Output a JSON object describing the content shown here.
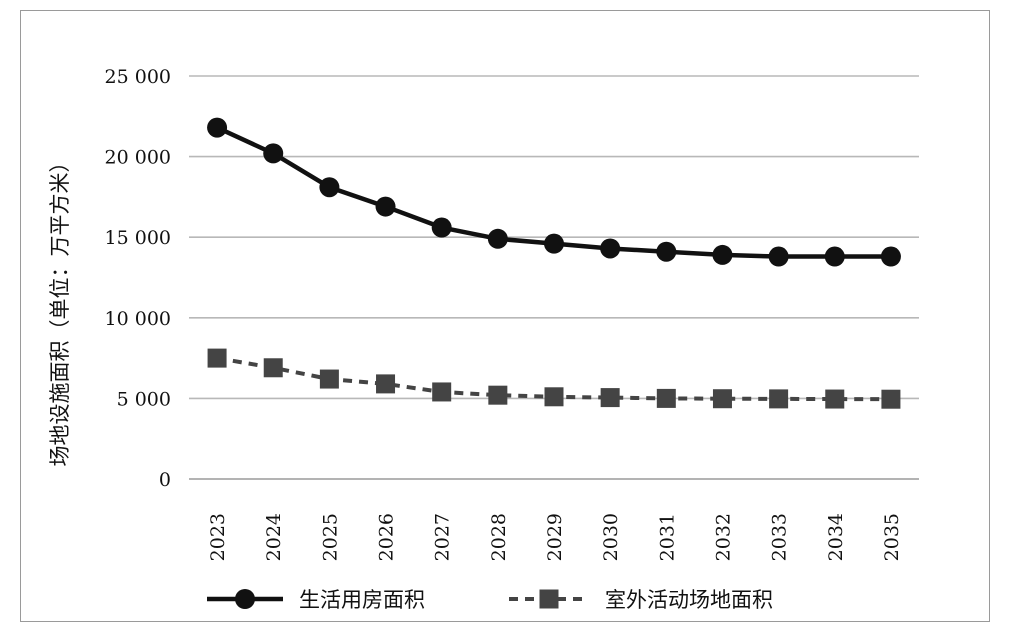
{
  "chart_data": {
    "type": "line",
    "ylabel": "场地设施面积（单位：万平方米）",
    "ylim": [
      0,
      25000
    ],
    "yticks": [
      0,
      5000,
      10000,
      15000,
      20000,
      25000
    ],
    "ytick_labels": [
      "0",
      "5 000",
      "10 000",
      "15 000",
      "20 000",
      "25 000"
    ],
    "categories": [
      "2023",
      "2024",
      "2025",
      "2026",
      "2027",
      "2028",
      "2029",
      "2030",
      "2031",
      "2032",
      "2033",
      "2034",
      "2035"
    ],
    "grid": true,
    "legend_position": "bottom",
    "series": [
      {
        "name": "生活用房面积",
        "marker": "circle",
        "line": "solid",
        "color": "#111111",
        "values": [
          21800,
          20200,
          18100,
          16900,
          15600,
          14900,
          14600,
          14300,
          14100,
          13900,
          13800,
          13800,
          13800
        ]
      },
      {
        "name": "室外活动场地面积",
        "marker": "square",
        "line": "dashed",
        "color": "#444444",
        "values": [
          7500,
          6900,
          6200,
          5900,
          5400,
          5200,
          5100,
          5050,
          5000,
          4980,
          4970,
          4960,
          4950
        ]
      }
    ]
  }
}
